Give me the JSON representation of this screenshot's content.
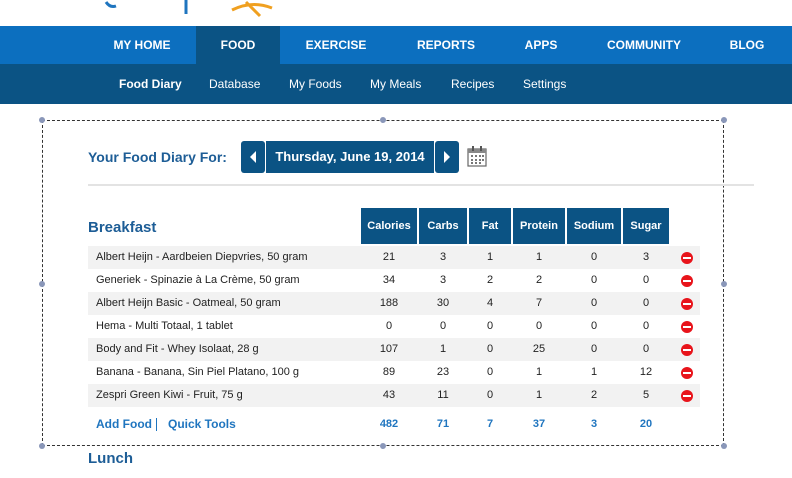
{
  "nav": {
    "main": [
      {
        "label": "MY HOME"
      },
      {
        "label": "FOOD"
      },
      {
        "label": "EXERCISE"
      },
      {
        "label": "REPORTS"
      },
      {
        "label": "APPS"
      },
      {
        "label": "COMMUNITY"
      },
      {
        "label": "BLOG"
      }
    ],
    "sub": [
      {
        "label": "Food Diary"
      },
      {
        "label": "Database"
      },
      {
        "label": "My Foods"
      },
      {
        "label": "My Meals"
      },
      {
        "label": "Recipes"
      },
      {
        "label": "Settings"
      }
    ]
  },
  "diary": {
    "title": "Your Food Diary For:",
    "date": "Thursday, June 19, 2014"
  },
  "meal": {
    "name": "Breakfast",
    "columns": [
      "Calories",
      "Carbs",
      "Fat",
      "Protein",
      "Sodium",
      "Sugar"
    ],
    "rows": [
      {
        "food": "Albert Heijn - Aardbeien Diepvries, 50 gram",
        "calories": "21",
        "carbs": "3",
        "fat": "1",
        "protein": "1",
        "sodium": "0",
        "sugar": "3"
      },
      {
        "food": "Generiek - Spinazie à La Crème, 50 gram",
        "calories": "34",
        "carbs": "3",
        "fat": "2",
        "protein": "2",
        "sodium": "0",
        "sugar": "0"
      },
      {
        "food": "Albert Heijn Basic - Oatmeal, 50 gram",
        "calories": "188",
        "carbs": "30",
        "fat": "4",
        "protein": "7",
        "sodium": "0",
        "sugar": "0"
      },
      {
        "food": "Hema - Multi Totaal, 1 tablet",
        "calories": "0",
        "carbs": "0",
        "fat": "0",
        "protein": "0",
        "sodium": "0",
        "sugar": "0"
      },
      {
        "food": "Body and Fit - Whey Isolaat, 28 g",
        "calories": "107",
        "carbs": "1",
        "fat": "0",
        "protein": "25",
        "sodium": "0",
        "sugar": "0"
      },
      {
        "food": "Banana - Banana, Sin Piel Platano, 100 g",
        "calories": "89",
        "carbs": "23",
        "fat": "0",
        "protein": "1",
        "sodium": "1",
        "sugar": "12"
      },
      {
        "food": "Zespri Green Kiwi - Fruit, 75 g",
        "calories": "43",
        "carbs": "11",
        "fat": "0",
        "protein": "1",
        "sodium": "2",
        "sugar": "5"
      }
    ],
    "add_food": "Add Food",
    "quick_tools": "Quick Tools",
    "totals": {
      "calories": "482",
      "carbs": "71",
      "fat": "7",
      "protein": "37",
      "sodium": "3",
      "sugar": "20"
    }
  },
  "next_meal": "Lunch",
  "colors": {
    "nav_blue": "#0c6fbf",
    "nav_dark": "#0b5384",
    "title_blue": "#1d5d96",
    "link_blue": "#1f75bf",
    "delete_red": "#e8141b"
  },
  "icons": {
    "prev": "chevron-left-icon",
    "next": "chevron-right-icon",
    "calendar": "calendar-icon",
    "delete": "remove-circle-icon"
  }
}
